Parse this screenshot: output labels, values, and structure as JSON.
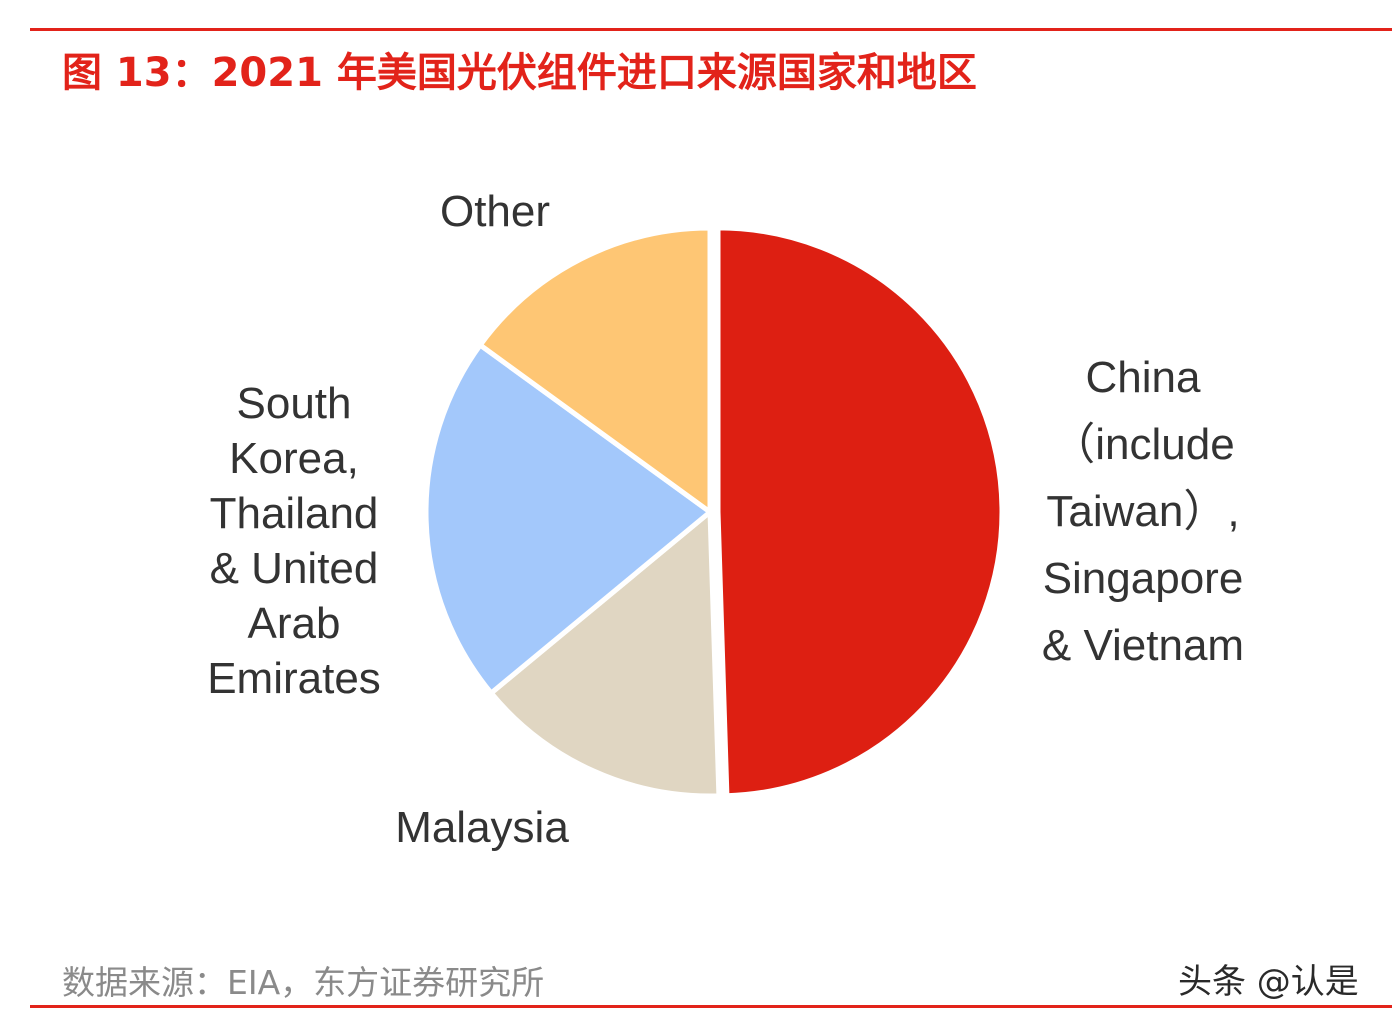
{
  "header": {
    "title": "图 13：2021 年美国光伏组件进口来源国家和地区"
  },
  "chart_data": {
    "type": "pie",
    "slices": [
      {
        "name": "China（include Taiwan）, Singapore & Vietnam",
        "value": 49.5,
        "color": "#dd1f12",
        "label_lines": [
          "China",
          "（include",
          "Taiwan）,",
          "Singapore",
          "& Vietnam"
        ]
      },
      {
        "name": "Malaysia",
        "value": 14.5,
        "color": "#e0d6c2",
        "label_lines": [
          "Malaysia"
        ]
      },
      {
        "name": "South Korea, Thailand & United Arab Emirates",
        "value": 21.0,
        "color": "#a3c8fb",
        "label_lines": [
          "South",
          "Korea,",
          "Thailand",
          "& United",
          "Arab",
          "Emirates"
        ]
      },
      {
        "name": "Other",
        "value": 15.0,
        "color": "#fec674",
        "label_lines": [
          "Other"
        ]
      }
    ],
    "start_angle": "12 o'clock",
    "direction": "clockwise",
    "legend": "none"
  },
  "footer": {
    "source": "数据来源：EIA，东方证券研究所",
    "watermark": "头条 @认是"
  }
}
